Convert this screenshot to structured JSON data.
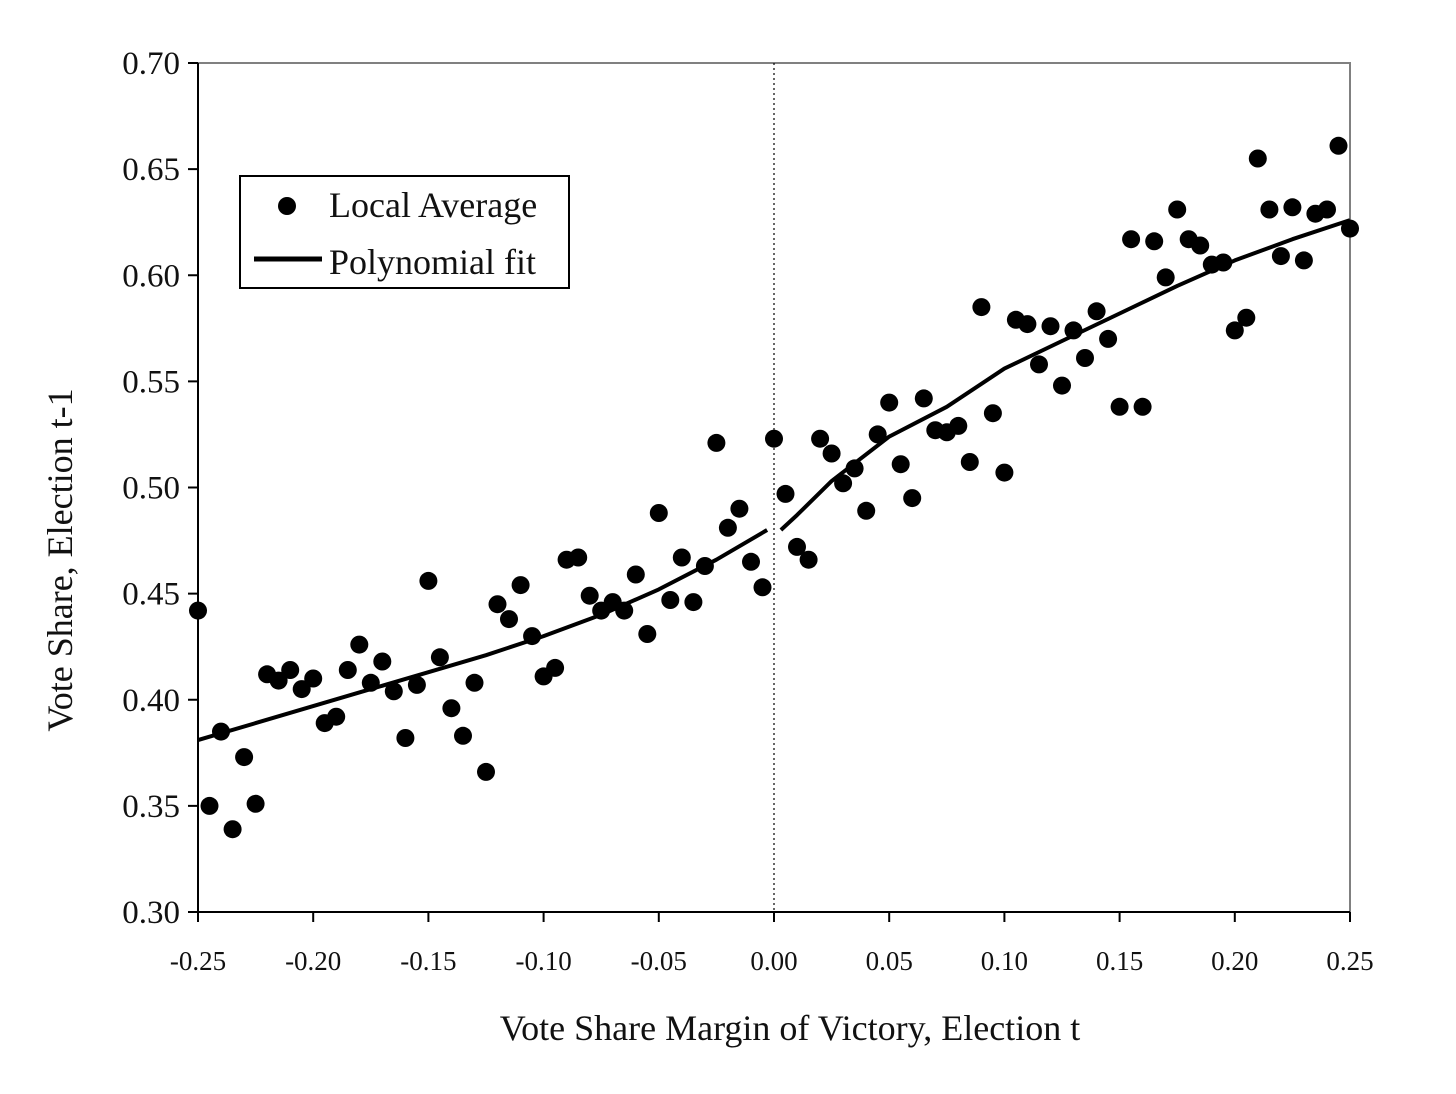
{
  "chart_data": {
    "type": "scatter",
    "xlabel": "Vote Share Margin of Victory, Election t",
    "ylabel": "Vote Share, Election t-1",
    "xlim": [
      -0.25,
      0.25
    ],
    "ylim": [
      0.3,
      0.7
    ],
    "x_ticks": [
      "-0.25",
      "-0.20",
      "-0.15",
      "-0.10",
      "-0.05",
      "0.00",
      "0.05",
      "0.10",
      "0.15",
      "0.20",
      "0.25"
    ],
    "y_ticks": [
      "0.30",
      "0.35",
      "0.40",
      "0.45",
      "0.50",
      "0.55",
      "0.60",
      "0.65",
      "0.70"
    ],
    "grid": false,
    "cutoff_x": 0,
    "legend": {
      "placement": "top-left",
      "entries": [
        "Local Average",
        "Polynomial fit"
      ]
    },
    "series": [
      {
        "name": "Local Average",
        "kind": "scatter",
        "points": [
          [
            -0.25,
            0.442
          ],
          [
            -0.245,
            0.35
          ],
          [
            -0.24,
            0.385
          ],
          [
            -0.235,
            0.339
          ],
          [
            -0.23,
            0.373
          ],
          [
            -0.225,
            0.351
          ],
          [
            -0.22,
            0.412
          ],
          [
            -0.215,
            0.409
          ],
          [
            -0.21,
            0.414
          ],
          [
            -0.205,
            0.405
          ],
          [
            -0.2,
            0.41
          ],
          [
            -0.195,
            0.389
          ],
          [
            -0.19,
            0.392
          ],
          [
            -0.185,
            0.414
          ],
          [
            -0.18,
            0.426
          ],
          [
            -0.175,
            0.408
          ],
          [
            -0.17,
            0.418
          ],
          [
            -0.165,
            0.404
          ],
          [
            -0.16,
            0.382
          ],
          [
            -0.155,
            0.407
          ],
          [
            -0.15,
            0.456
          ],
          [
            -0.145,
            0.42
          ],
          [
            -0.14,
            0.396
          ],
          [
            -0.135,
            0.383
          ],
          [
            -0.13,
            0.408
          ],
          [
            -0.125,
            0.366
          ],
          [
            -0.12,
            0.445
          ],
          [
            -0.115,
            0.438
          ],
          [
            -0.11,
            0.454
          ],
          [
            -0.105,
            0.43
          ],
          [
            -0.1,
            0.411
          ],
          [
            -0.095,
            0.415
          ],
          [
            -0.09,
            0.466
          ],
          [
            -0.085,
            0.467
          ],
          [
            -0.08,
            0.449
          ],
          [
            -0.075,
            0.442
          ],
          [
            -0.07,
            0.446
          ],
          [
            -0.065,
            0.442
          ],
          [
            -0.06,
            0.459
          ],
          [
            -0.055,
            0.431
          ],
          [
            -0.05,
            0.488
          ],
          [
            -0.045,
            0.447
          ],
          [
            -0.04,
            0.467
          ],
          [
            -0.035,
            0.446
          ],
          [
            -0.03,
            0.463
          ],
          [
            -0.025,
            0.521
          ],
          [
            -0.02,
            0.481
          ],
          [
            -0.015,
            0.49
          ],
          [
            -0.01,
            0.465
          ],
          [
            -0.005,
            0.453
          ],
          [
            0.0,
            0.523
          ],
          [
            0.005,
            0.497
          ],
          [
            0.01,
            0.472
          ],
          [
            0.015,
            0.466
          ],
          [
            0.02,
            0.523
          ],
          [
            0.025,
            0.516
          ],
          [
            0.03,
            0.502
          ],
          [
            0.035,
            0.509
          ],
          [
            0.04,
            0.489
          ],
          [
            0.045,
            0.525
          ],
          [
            0.05,
            0.54
          ],
          [
            0.055,
            0.511
          ],
          [
            0.06,
            0.495
          ],
          [
            0.065,
            0.542
          ],
          [
            0.07,
            0.527
          ],
          [
            0.075,
            0.526
          ],
          [
            0.08,
            0.529
          ],
          [
            0.085,
            0.512
          ],
          [
            0.09,
            0.585
          ],
          [
            0.095,
            0.535
          ],
          [
            0.1,
            0.507
          ],
          [
            0.105,
            0.579
          ],
          [
            0.11,
            0.577
          ],
          [
            0.115,
            0.558
          ],
          [
            0.12,
            0.576
          ],
          [
            0.125,
            0.548
          ],
          [
            0.13,
            0.574
          ],
          [
            0.135,
            0.561
          ],
          [
            0.14,
            0.583
          ],
          [
            0.145,
            0.57
          ],
          [
            0.15,
            0.538
          ],
          [
            0.155,
            0.617
          ],
          [
            0.16,
            0.538
          ],
          [
            0.165,
            0.616
          ],
          [
            0.17,
            0.599
          ],
          [
            0.175,
            0.631
          ],
          [
            0.18,
            0.617
          ],
          [
            0.185,
            0.614
          ],
          [
            0.19,
            0.605
          ],
          [
            0.195,
            0.606
          ],
          [
            0.2,
            0.574
          ],
          [
            0.205,
            0.58
          ],
          [
            0.21,
            0.655
          ],
          [
            0.215,
            0.631
          ],
          [
            0.22,
            0.609
          ],
          [
            0.225,
            0.632
          ],
          [
            0.23,
            0.607
          ],
          [
            0.235,
            0.629
          ],
          [
            0.24,
            0.631
          ],
          [
            0.245,
            0.661
          ],
          [
            0.25,
            0.622
          ]
        ]
      },
      {
        "name": "Polynomial fit",
        "kind": "line",
        "segments": [
          [
            [
              -0.25,
              0.381
            ],
            [
              -0.225,
              0.389
            ],
            [
              -0.2,
              0.397
            ],
            [
              -0.175,
              0.405
            ],
            [
              -0.15,
              0.413
            ],
            [
              -0.125,
              0.421
            ],
            [
              -0.1,
              0.43
            ],
            [
              -0.075,
              0.44
            ],
            [
              -0.05,
              0.452
            ],
            [
              -0.025,
              0.466
            ],
            [
              -0.003,
              0.48
            ]
          ],
          [
            [
              0.003,
              0.48
            ],
            [
              0.01,
              0.487
            ],
            [
              0.025,
              0.503
            ],
            [
              0.05,
              0.524
            ],
            [
              0.075,
              0.538
            ],
            [
              0.1,
              0.556
            ],
            [
              0.125,
              0.569
            ],
            [
              0.15,
              0.582
            ],
            [
              0.175,
              0.595
            ],
            [
              0.2,
              0.607
            ],
            [
              0.225,
              0.617
            ],
            [
              0.25,
              0.626
            ]
          ]
        ]
      }
    ]
  }
}
